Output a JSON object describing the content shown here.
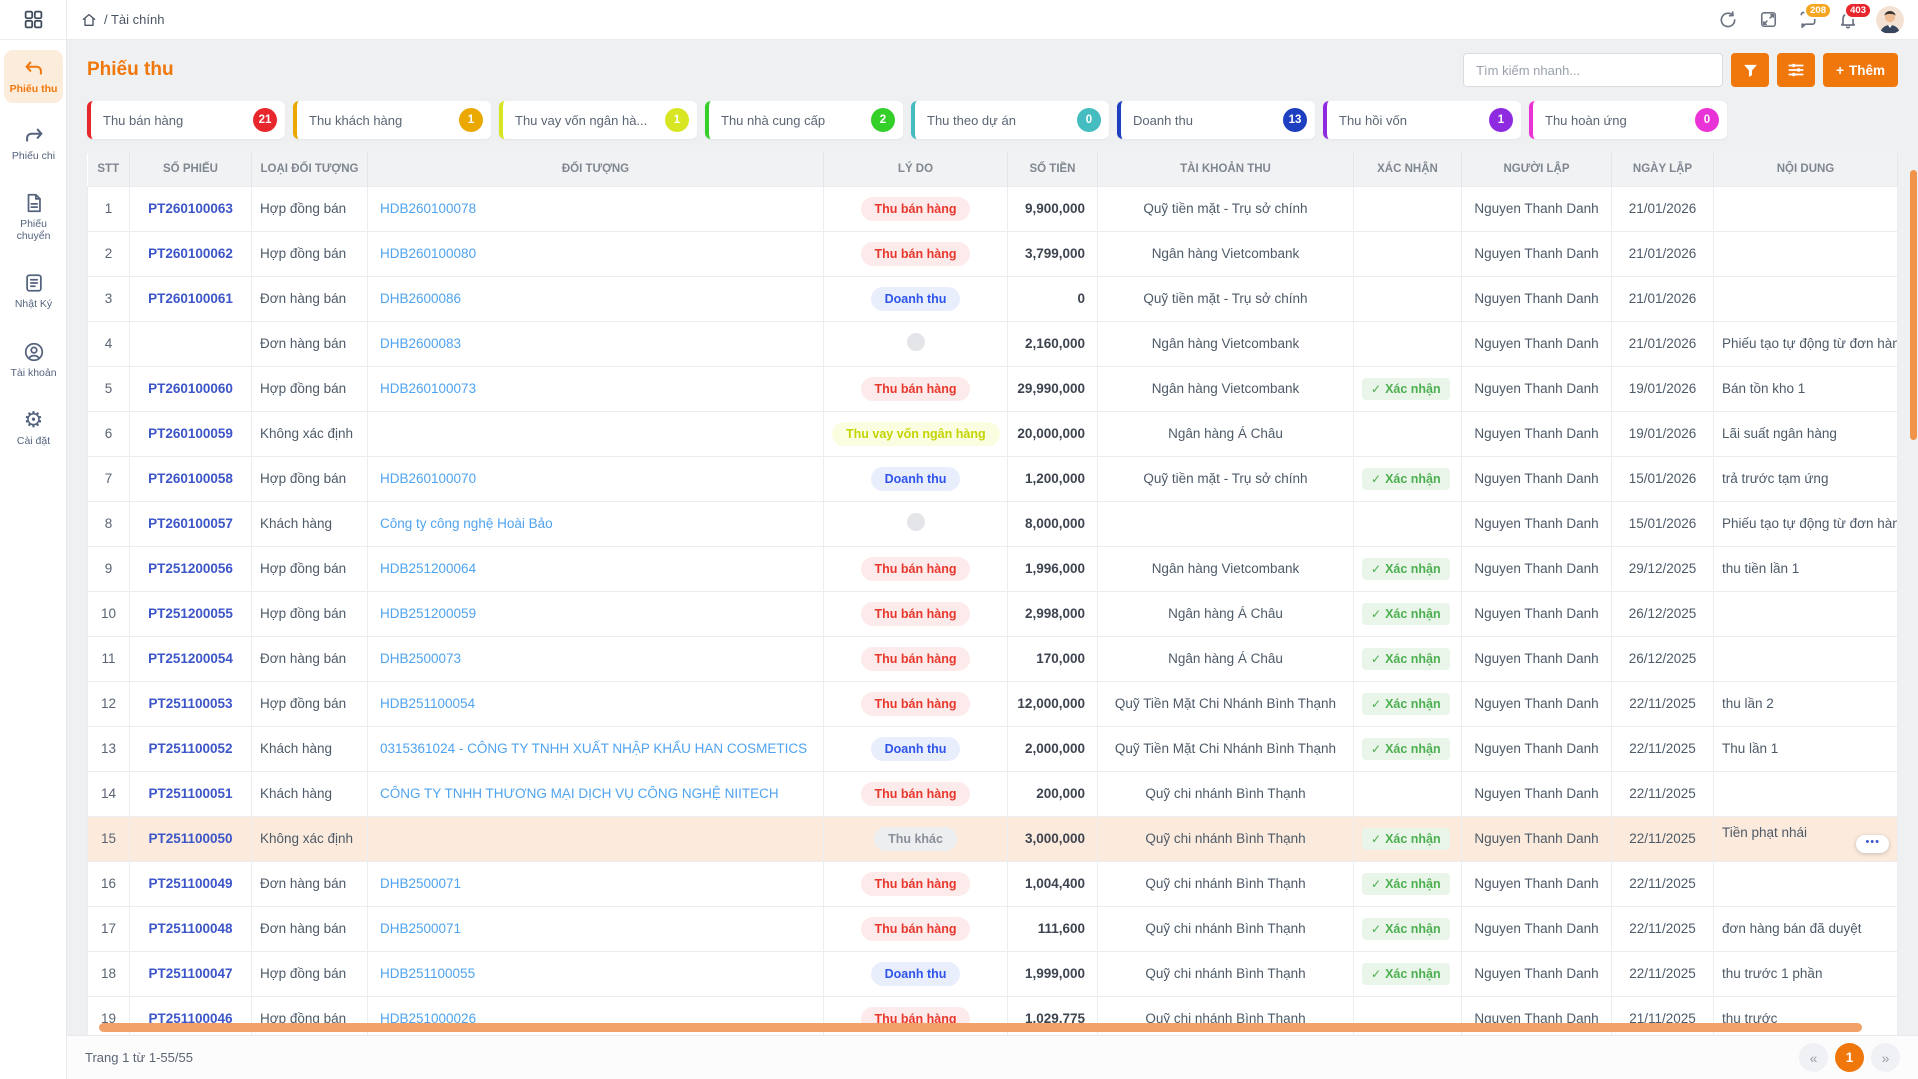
{
  "topbar": {
    "breadcrumb": "/ Tài chính",
    "chat_badge": "208",
    "bell_badge": "403"
  },
  "sidebar": {
    "items": [
      {
        "label": "Phiếu thu",
        "icon": "undo-icon",
        "active": true
      },
      {
        "label": "Phiếu chi",
        "icon": "redo-icon",
        "active": false
      },
      {
        "label": "Phiếu chuyển",
        "icon": "document-icon",
        "active": false
      },
      {
        "label": "Nhật Ký",
        "icon": "journal-icon",
        "active": false
      },
      {
        "label": "Tài khoản",
        "icon": "user-circle-icon",
        "active": false
      },
      {
        "label": "Cài đặt",
        "icon": "gear-icon",
        "active": false
      }
    ]
  },
  "page": {
    "title": "Phiếu thu",
    "search_placeholder": "Tìm kiếm nhanh...",
    "add_button_label": "Thêm",
    "add_button_plus": "+"
  },
  "tabs": [
    {
      "label": "Thu bán hàng",
      "count": "21",
      "color": "#e8272c"
    },
    {
      "label": "Thu khách hàng",
      "count": "1",
      "color": "#eaa800"
    },
    {
      "label": "Thu vay vốn ngân hà...",
      "count": "1",
      "color": "#d8e522"
    },
    {
      "label": "Thu nhà cung cấp",
      "count": "2",
      "color": "#35cf2a"
    },
    {
      "label": "Thu theo dự án",
      "count": "0",
      "color": "#45bdc0"
    },
    {
      "label": "Doanh thu",
      "count": "13",
      "color": "#1d3fc0"
    },
    {
      "label": "Thu hồi vốn",
      "count": "1",
      "color": "#8e2be0"
    },
    {
      "label": "Thu hoàn ứng",
      "count": "0",
      "color": "#ea33d7"
    }
  ],
  "table": {
    "headers": [
      "STT",
      "SỐ PHIẾU",
      "LOẠI ĐỐI TƯỢNG",
      "ĐỐI TƯỢNG",
      "LÝ DO",
      "SỐ TIỀN",
      "TÀI KHOẢN THU",
      "XÁC NHẬN",
      "NGƯỜI LẬP",
      "NGÀY LẬP",
      "NỘI DUNG"
    ],
    "confirm_label": "Xác nhận",
    "rows": [
      {
        "stt": "1",
        "so_phieu": "PT260100063",
        "loai": "Hợp đồng bán",
        "doi_tuong": "HDB260100078",
        "ly_do": "Thu bán hàng",
        "ly_do_type": "ban",
        "so_tien": "9,900,000",
        "tai_khoan": "Quỹ tiền mặt - Trụ sở chính",
        "xac_nhan": false,
        "nguoi_lap": "Nguyen Thanh Danh",
        "ngay_lap": "21/01/2026",
        "noi_dung": ""
      },
      {
        "stt": "2",
        "so_phieu": "PT260100062",
        "loai": "Hợp đồng bán",
        "doi_tuong": "HDB260100080",
        "ly_do": "Thu bán hàng",
        "ly_do_type": "ban",
        "so_tien": "3,799,000",
        "tai_khoan": "Ngân hàng Vietcombank",
        "xac_nhan": false,
        "nguoi_lap": "Nguyen Thanh Danh",
        "ngay_lap": "21/01/2026",
        "noi_dung": ""
      },
      {
        "stt": "3",
        "so_phieu": "PT260100061",
        "loai": "Đơn hàng bán",
        "doi_tuong": "DHB2600086",
        "ly_do": "Doanh thu",
        "ly_do_type": "doanh",
        "so_tien": "0",
        "tai_khoan": "Quỹ tiền mặt - Trụ sở chính",
        "xac_nhan": false,
        "nguoi_lap": "Nguyen Thanh Danh",
        "ngay_lap": "21/01/2026",
        "noi_dung": ""
      },
      {
        "stt": "4",
        "so_phieu": "",
        "loai": "Đơn hàng bán",
        "doi_tuong": "DHB2600083",
        "ly_do": "",
        "ly_do_type": "circle",
        "so_tien": "2,160,000",
        "tai_khoan": "Ngân hàng Vietcombank",
        "xac_nhan": false,
        "nguoi_lap": "Nguyen Thanh Danh",
        "ngay_lap": "21/01/2026",
        "noi_dung": "Phiếu tạo tự động từ đơn hàng"
      },
      {
        "stt": "5",
        "so_phieu": "PT260100060",
        "loai": "Hợp đồng bán",
        "doi_tuong": "HDB260100073",
        "ly_do": "Thu bán hàng",
        "ly_do_type": "ban",
        "so_tien": "29,990,000",
        "tai_khoan": "Ngân hàng Vietcombank",
        "xac_nhan": true,
        "nguoi_lap": "Nguyen Thanh Danh",
        "ngay_lap": "19/01/2026",
        "noi_dung": "Bán tồn kho 1"
      },
      {
        "stt": "6",
        "so_phieu": "PT260100059",
        "loai": "Không xác định",
        "doi_tuong": "",
        "ly_do": "Thu vay vốn ngân hàng",
        "ly_do_type": "vay",
        "so_tien": "20,000,000",
        "tai_khoan": "Ngân hàng Á Châu",
        "xac_nhan": false,
        "nguoi_lap": "Nguyen Thanh Danh",
        "ngay_lap": "19/01/2026",
        "noi_dung": "Lãi suất ngân hàng"
      },
      {
        "stt": "7",
        "so_phieu": "PT260100058",
        "loai": "Hợp đồng bán",
        "doi_tuong": "HDB260100070",
        "ly_do": "Doanh thu",
        "ly_do_type": "doanh",
        "so_tien": "1,200,000",
        "tai_khoan": "Quỹ tiền mặt - Trụ sở chính",
        "xac_nhan": true,
        "nguoi_lap": "Nguyen Thanh Danh",
        "ngay_lap": "15/01/2026",
        "noi_dung": "trả trước tạm ứng"
      },
      {
        "stt": "8",
        "so_phieu": "PT260100057",
        "loai": "Khách hàng",
        "doi_tuong": "Công ty công nghệ Hoài Bảo",
        "ly_do": "",
        "ly_do_type": "circle",
        "so_tien": "8,000,000",
        "tai_khoan": "",
        "xac_nhan": false,
        "nguoi_lap": "Nguyen Thanh Danh",
        "ngay_lap": "15/01/2026",
        "noi_dung": "Phiếu tạo tự động từ đơn hàng"
      },
      {
        "stt": "9",
        "so_phieu": "PT251200056",
        "loai": "Hợp đồng bán",
        "doi_tuong": "HDB251200064",
        "ly_do": "Thu bán hàng",
        "ly_do_type": "ban",
        "so_tien": "1,996,000",
        "tai_khoan": "Ngân hàng Vietcombank",
        "xac_nhan": true,
        "nguoi_lap": "Nguyen Thanh Danh",
        "ngay_lap": "29/12/2025",
        "noi_dung": "thu tiền lần 1"
      },
      {
        "stt": "10",
        "so_phieu": "PT251200055",
        "loai": "Hợp đồng bán",
        "doi_tuong": "HDB251200059",
        "ly_do": "Thu bán hàng",
        "ly_do_type": "ban",
        "so_tien": "2,998,000",
        "tai_khoan": "Ngân hàng Á Châu",
        "xac_nhan": true,
        "nguoi_lap": "Nguyen Thanh Danh",
        "ngay_lap": "26/12/2025",
        "noi_dung": ""
      },
      {
        "stt": "11",
        "so_phieu": "PT251200054",
        "loai": "Đơn hàng bán",
        "doi_tuong": "DHB2500073",
        "ly_do": "Thu bán hàng",
        "ly_do_type": "ban",
        "so_tien": "170,000",
        "tai_khoan": "Ngân hàng Á Châu",
        "xac_nhan": true,
        "nguoi_lap": "Nguyen Thanh Danh",
        "ngay_lap": "26/12/2025",
        "noi_dung": ""
      },
      {
        "stt": "12",
        "so_phieu": "PT251100053",
        "loai": "Hợp đồng bán",
        "doi_tuong": "HDB251100054",
        "ly_do": "Thu bán hàng",
        "ly_do_type": "ban",
        "so_tien": "12,000,000",
        "tai_khoan": "Quỹ Tiền Mặt Chi Nhánh Bình Thạnh",
        "xac_nhan": true,
        "nguoi_lap": "Nguyen Thanh Danh",
        "ngay_lap": "22/11/2025",
        "noi_dung": "thu lần 2"
      },
      {
        "stt": "13",
        "so_phieu": "PT251100052",
        "loai": "Khách hàng",
        "doi_tuong": "0315361024 - CÔNG TY TNHH XUẤT NHẬP KHẨU HAN COSMETICS",
        "ly_do": "Doanh thu",
        "ly_do_type": "doanh",
        "so_tien": "2,000,000",
        "tai_khoan": "Quỹ Tiền Mặt Chi Nhánh Bình Thạnh",
        "xac_nhan": true,
        "nguoi_lap": "Nguyen Thanh Danh",
        "ngay_lap": "22/11/2025",
        "noi_dung": "Thu lần 1"
      },
      {
        "stt": "14",
        "so_phieu": "PT251100051",
        "loai": "Khách hàng",
        "doi_tuong": "CÔNG TY TNHH THƯƠNG MẠI DỊCH VỤ CÔNG NGHỆ NIITECH",
        "ly_do": "Thu bán hàng",
        "ly_do_type": "ban",
        "so_tien": "200,000",
        "tai_khoan": "Quỹ chi nhánh Bình Thạnh",
        "xac_nhan": false,
        "nguoi_lap": "Nguyen Thanh Danh",
        "ngay_lap": "22/11/2025",
        "noi_dung": ""
      },
      {
        "stt": "15",
        "so_phieu": "PT251100050",
        "loai": "Không xác định",
        "doi_tuong": "",
        "ly_do": "Thu khác",
        "ly_do_type": "khac",
        "so_tien": "3,000,000",
        "tai_khoan": "Quỹ chi nhánh Bình Thạnh",
        "xac_nhan": true,
        "nguoi_lap": "Nguyen Thanh Danh",
        "ngay_lap": "22/11/2025",
        "noi_dung": "Tiền phạt nhái",
        "highlight": true,
        "action": true
      },
      {
        "stt": "16",
        "so_phieu": "PT251100049",
        "loai": "Đơn hàng bán",
        "doi_tuong": "DHB2500071",
        "ly_do": "Thu bán hàng",
        "ly_do_type": "ban",
        "so_tien": "1,004,400",
        "tai_khoan": "Quỹ chi nhánh Bình Thạnh",
        "xac_nhan": true,
        "nguoi_lap": "Nguyen Thanh Danh",
        "ngay_lap": "22/11/2025",
        "noi_dung": ""
      },
      {
        "stt": "17",
        "so_phieu": "PT251100048",
        "loai": "Đơn hàng bán",
        "doi_tuong": "DHB2500071",
        "ly_do": "Thu bán hàng",
        "ly_do_type": "ban",
        "so_tien": "111,600",
        "tai_khoan": "Quỹ chi nhánh Bình Thạnh",
        "xac_nhan": true,
        "nguoi_lap": "Nguyen Thanh Danh",
        "ngay_lap": "22/11/2025",
        "noi_dung": "đơn hàng bán đã duyệt"
      },
      {
        "stt": "18",
        "so_phieu": "PT251100047",
        "loai": "Hợp đồng bán",
        "doi_tuong": "HDB251100055",
        "ly_do": "Doanh thu",
        "ly_do_type": "doanh",
        "so_tien": "1,999,000",
        "tai_khoan": "Quỹ chi nhánh Bình Thạnh",
        "xac_nhan": true,
        "nguoi_lap": "Nguyen Thanh Danh",
        "ngay_lap": "22/11/2025",
        "noi_dung": "thu trước 1 phần"
      },
      {
        "stt": "19",
        "so_phieu": "PT251100046",
        "loai": "Hợp đồng bán",
        "doi_tuong": "HDB251000026",
        "ly_do": "Thu bán hàng",
        "ly_do_type": "ban",
        "so_tien": "1,029,775",
        "tai_khoan": "Quỹ chi nhánh Bình Thạnh",
        "xac_nhan": false,
        "nguoi_lap": "Nguyen Thanh Danh",
        "ngay_lap": "21/11/2025",
        "noi_dung": "thu trước"
      }
    ]
  },
  "footer": {
    "range_label": "Trang 1 từ 1-55/55",
    "current_page": "1",
    "prev": "«",
    "next": "»"
  },
  "colors": {
    "accent": "#f0770b",
    "row_highlight": "#fcebdc",
    "scrollbar": "#f2a269",
    "confirm_green": "#4caf50"
  }
}
